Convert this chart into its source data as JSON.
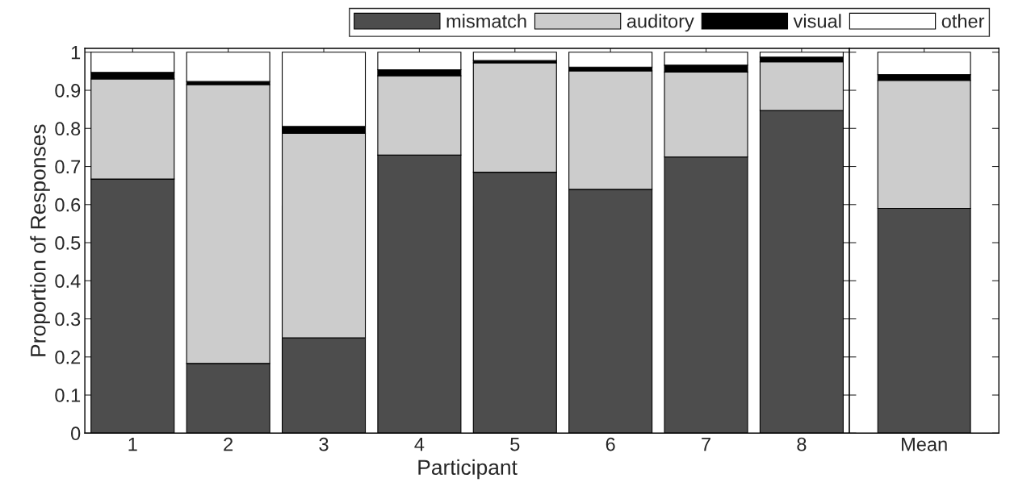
{
  "chart_data": [
    {
      "type": "bar",
      "stacked": true,
      "xlabel": "Participant",
      "ylabel": "Proportion of Responses",
      "categories": [
        "1",
        "2",
        "3",
        "4",
        "5",
        "6",
        "7",
        "8"
      ],
      "ylim": [
        0,
        1.01
      ],
      "yticks": [
        0,
        0.1,
        0.2,
        0.3,
        0.4,
        0.5,
        0.6,
        0.7,
        0.8,
        0.9,
        1
      ],
      "legend": "top right",
      "grid": false,
      "series": [
        {
          "name": "mismatch",
          "color": "#4d4d4d",
          "values": [
            0.667,
            0.183,
            0.25,
            0.73,
            0.685,
            0.64,
            0.725,
            0.847
          ]
        },
        {
          "name": "auditory",
          "color": "#cccccc",
          "values": [
            0.263,
            0.732,
            0.537,
            0.208,
            0.287,
            0.311,
            0.223,
            0.128
          ]
        },
        {
          "name": "visual",
          "color": "#000000",
          "values": [
            0.017,
            0.008,
            0.018,
            0.016,
            0.006,
            0.01,
            0.018,
            0.012
          ]
        },
        {
          "name": "other",
          "color": "#ffffff",
          "values": [
            0.053,
            0.077,
            0.195,
            0.046,
            0.022,
            0.039,
            0.034,
            0.013
          ]
        }
      ]
    },
    {
      "type": "bar",
      "stacked": true,
      "categories": [
        "Mean"
      ],
      "ylim": [
        0,
        1.01
      ],
      "yticks": [
        0,
        0.1,
        0.2,
        0.3,
        0.4,
        0.5,
        0.6,
        0.7,
        0.8,
        0.9,
        1
      ],
      "tick_labels": "x",
      "grid": false,
      "series": [
        {
          "color": "#4d4d4d",
          "values": [
            0.59
          ]
        },
        {
          "color": "#cccccc",
          "values": [
            0.336
          ]
        },
        {
          "color": "#000000",
          "values": [
            0.015
          ]
        },
        {
          "color": "#ffffff",
          "values": [
            0.059
          ]
        }
      ]
    }
  ]
}
